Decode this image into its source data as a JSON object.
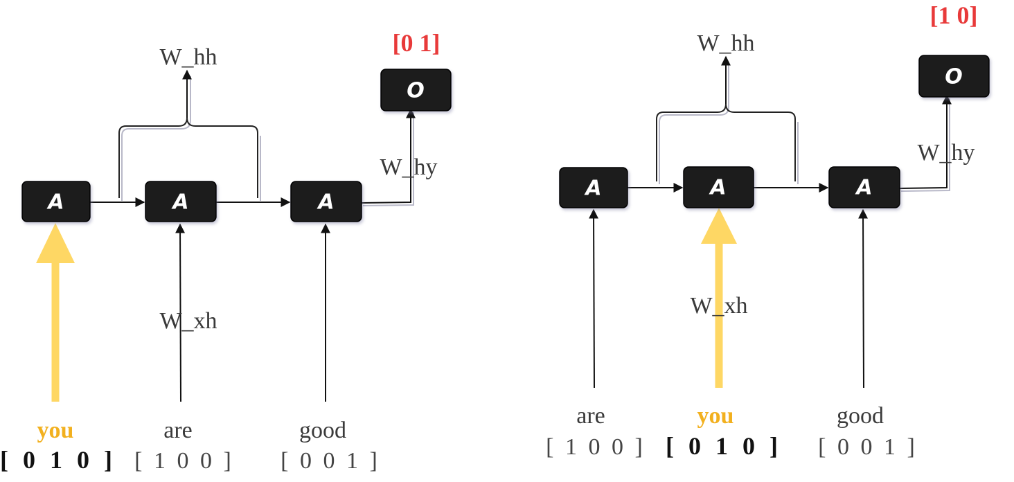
{
  "left_diagram": {
    "nodes": [
      "A",
      "A",
      "A"
    ],
    "output_node": "O",
    "output_value": "[0 1]",
    "weights": {
      "hidden": "W_hh",
      "input": "W_xh",
      "output": "W_hy"
    },
    "inputs": [
      {
        "word": "you",
        "vector": "[ 0 1 0 ]",
        "highlighted": true
      },
      {
        "word": "are",
        "vector": "[ 1 0 0 ]",
        "highlighted": false
      },
      {
        "word": "good",
        "vector": "[ 0 0 1 ]",
        "highlighted": false
      }
    ]
  },
  "right_diagram": {
    "nodes": [
      "A",
      "A",
      "A"
    ],
    "output_node": "O",
    "output_value": "[1 0]",
    "weights": {
      "hidden": "W_hh",
      "input": "W_xh",
      "output": "W_hy"
    },
    "inputs": [
      {
        "word": "are",
        "vector": "[ 1 0 0 ]",
        "highlighted": false
      },
      {
        "word": "you",
        "vector": "[ 0 1 0 ]",
        "highlighted": true
      },
      {
        "word": "good",
        "vector": "[ 0 0 1 ]",
        "highlighted": false
      }
    ]
  },
  "colors": {
    "highlight_arrow": "#fed764",
    "highlight_word": "#f2b01e",
    "output_value": "#e83a3a",
    "node_fill": "#1c1c1c"
  }
}
